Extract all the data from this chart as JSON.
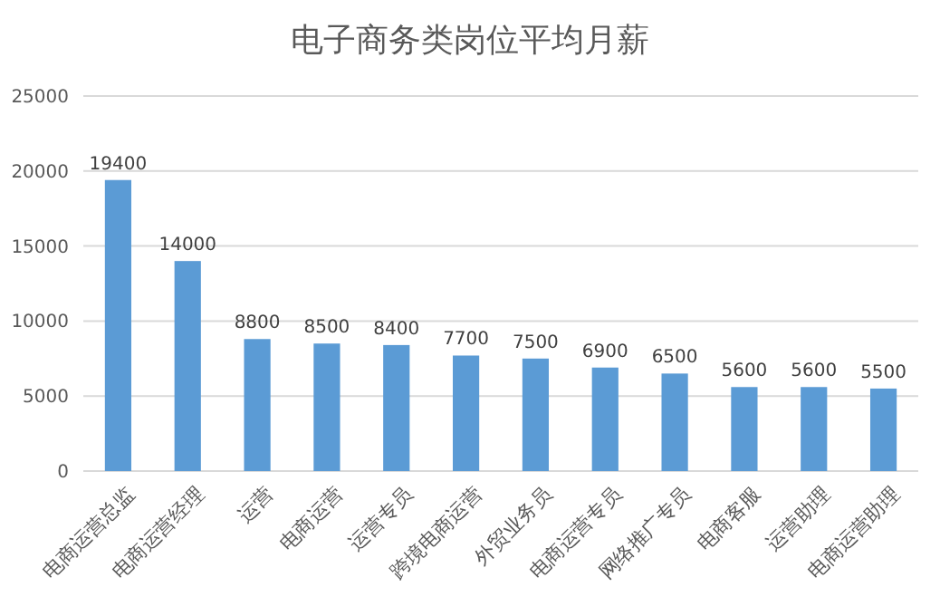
{
  "chart_data": {
    "type": "bar",
    "title": "电子商务类岗位平均月薪",
    "categories": [
      "电商运营总监",
      "电商运营经理",
      "运营",
      "电商运营",
      "运营专员",
      "跨境电商运营",
      "外贸业务员",
      "电商运营专员",
      "网络推广专员",
      "电商客服",
      "运营助理",
      "电商运营助理"
    ],
    "values": [
      19400,
      14000,
      8800,
      8500,
      8400,
      7700,
      7500,
      6900,
      6500,
      5600,
      5600,
      5500
    ],
    "color": "#5b9bd5",
    "ylim": [
      0,
      25000
    ],
    "yticks": [
      0,
      5000,
      10000,
      15000,
      20000,
      25000
    ],
    "grid": "y",
    "data_labels": true
  }
}
